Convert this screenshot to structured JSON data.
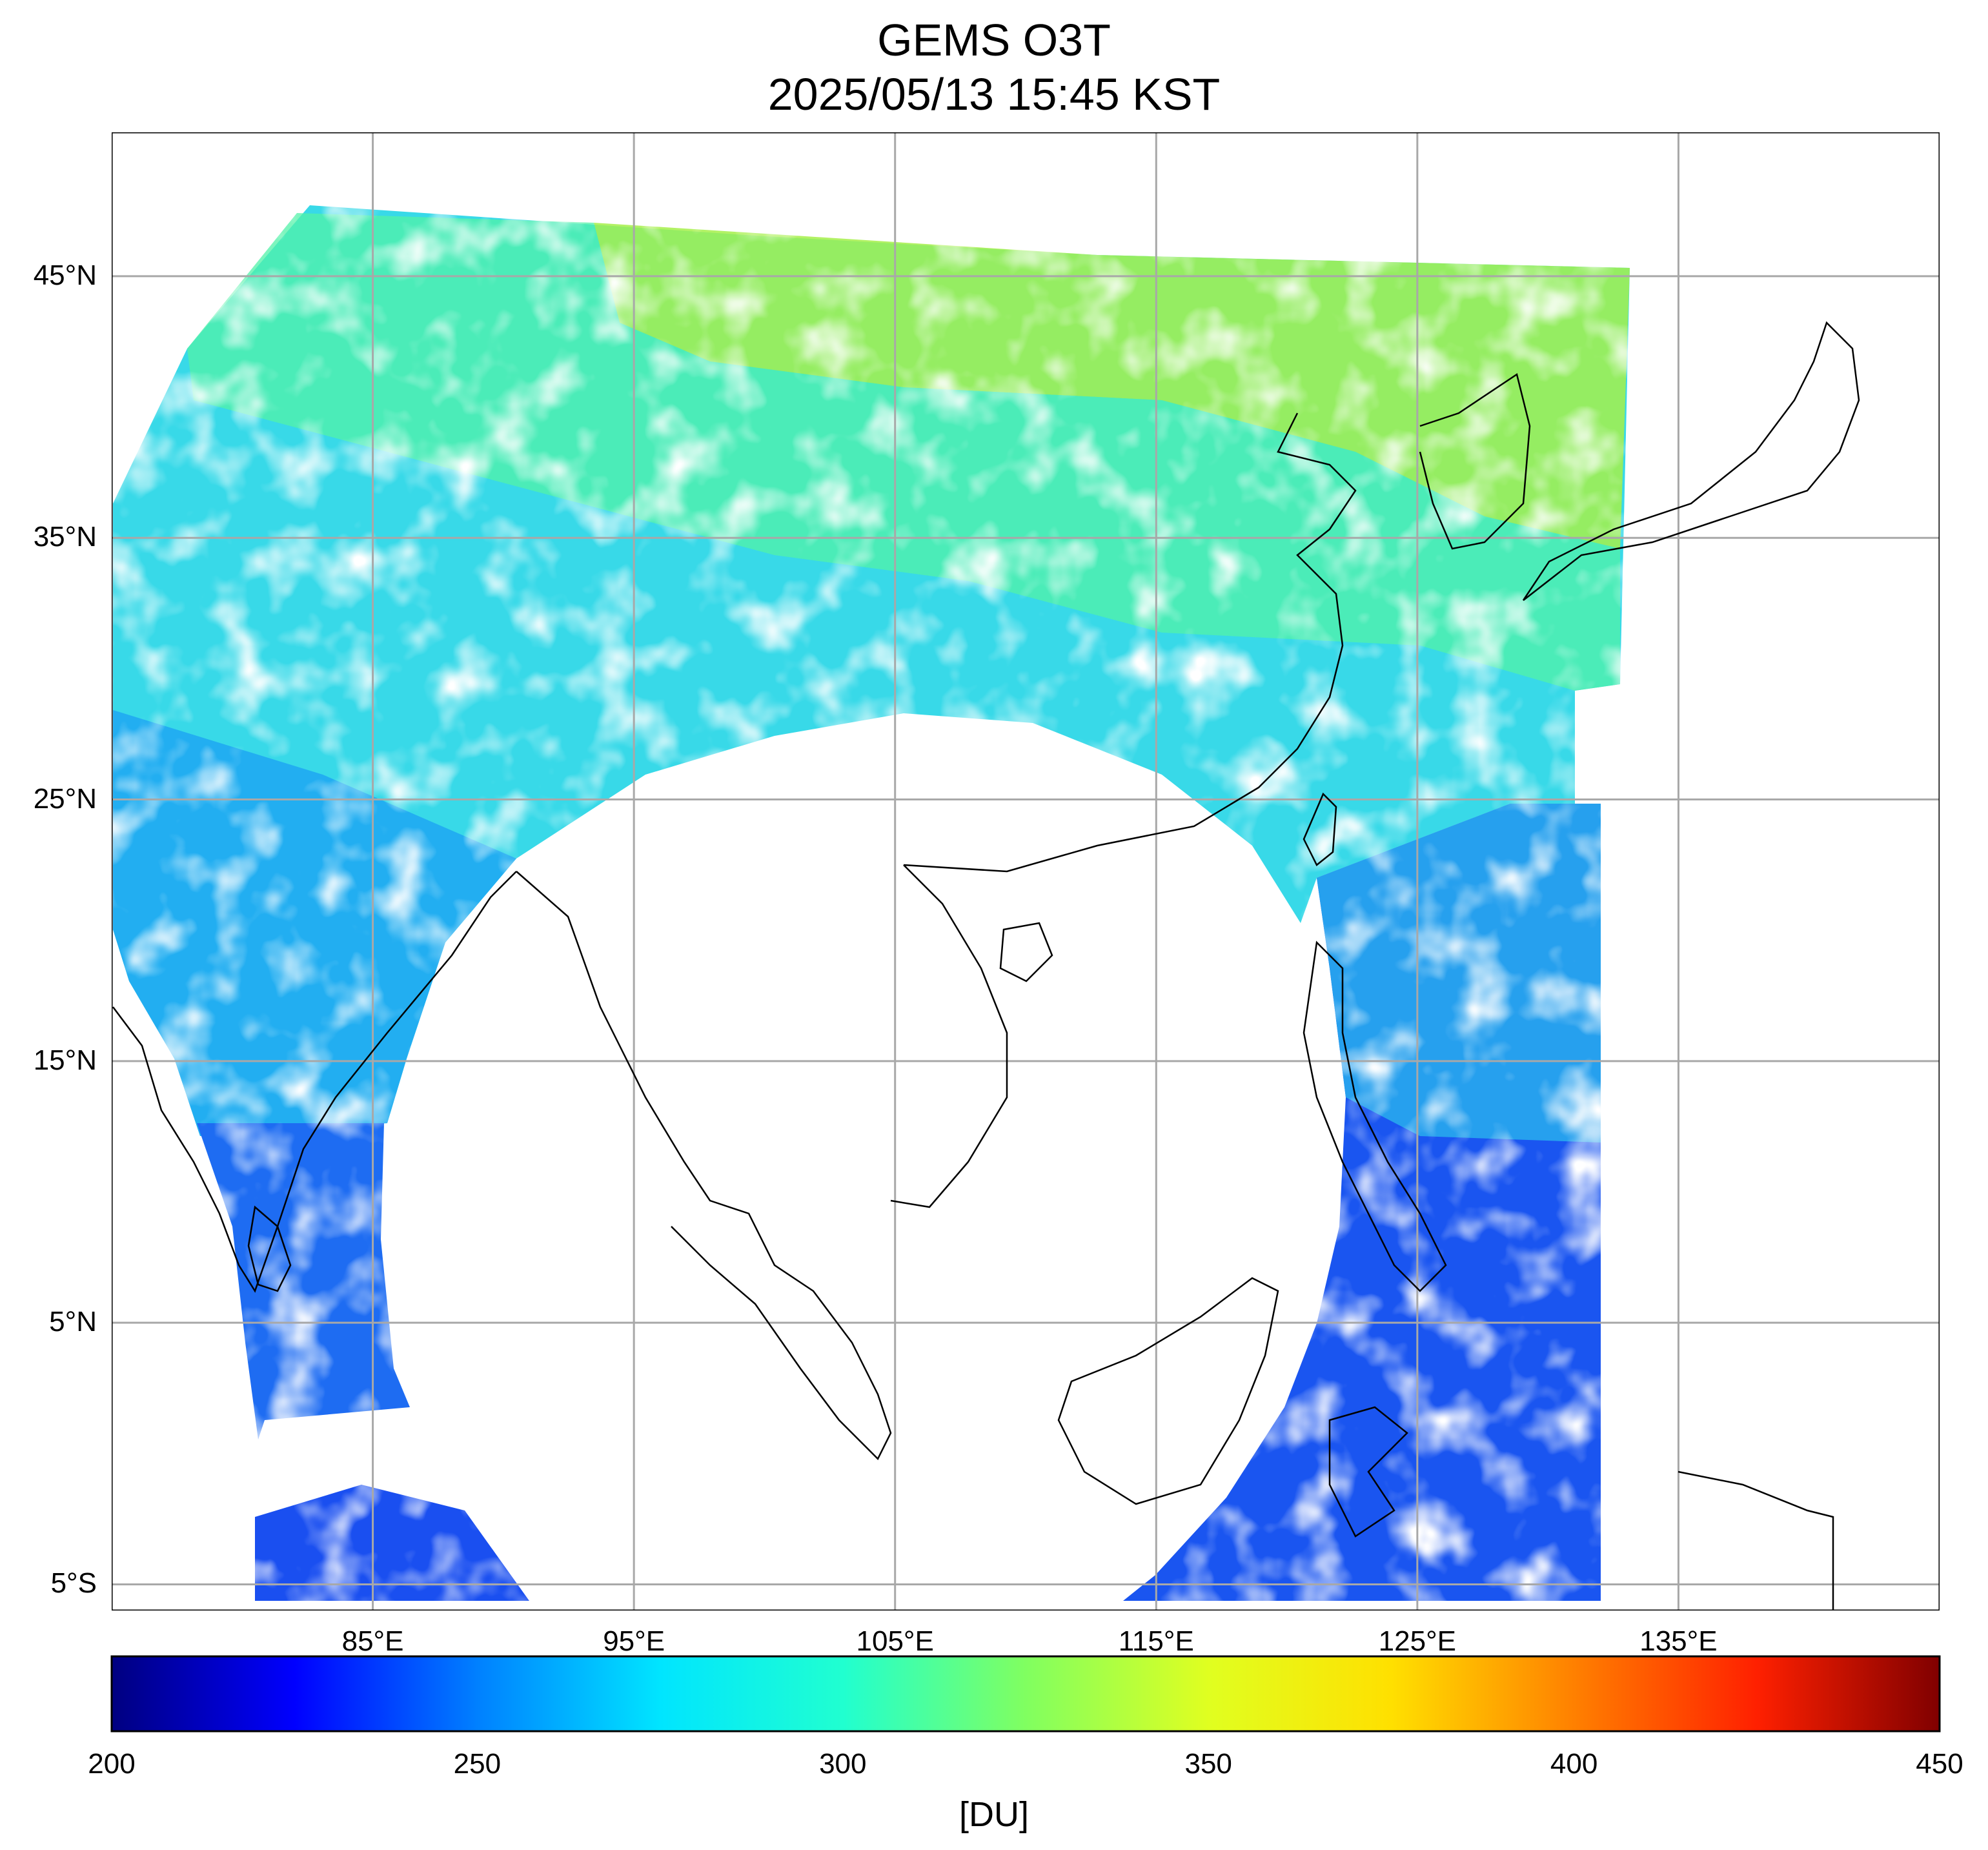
{
  "title": {
    "line1": "GEMS O3T",
    "line2": "2025/05/13 15:45 KST"
  },
  "map": {
    "region": "East & South Asia, Western Pacific",
    "lon_range": [
      75,
      145
    ],
    "lat_range": [
      -6,
      50.5
    ],
    "gridlines": true,
    "lat_labels": [
      "45°N",
      "35°N",
      "25°N",
      "15°N",
      "5°N",
      "5°S"
    ],
    "lat_values": [
      45,
      35,
      25,
      15,
      5,
      -5
    ],
    "lon_labels": [
      "85°E",
      "95°E",
      "105°E",
      "115°E",
      "125°E",
      "135°E"
    ],
    "lon_values": [
      85,
      95,
      105,
      115,
      125,
      135
    ]
  },
  "colorbar": {
    "unit": "[DU]",
    "min": 200,
    "max": 450,
    "tick_labels": [
      "200",
      "250",
      "300",
      "350",
      "400",
      "450"
    ],
    "tick_values": [
      200,
      250,
      300,
      350,
      400,
      450
    ],
    "colors": [
      "#000080",
      "#0000ff",
      "#0080ff",
      "#00e5ff",
      "#20ffd0",
      "#80ff60",
      "#e0ff20",
      "#ffe000",
      "#ff8000",
      "#ff2000",
      "#800000"
    ]
  },
  "colors": {
    "grid": "#a8a8a8",
    "coast": "#000000"
  }
}
